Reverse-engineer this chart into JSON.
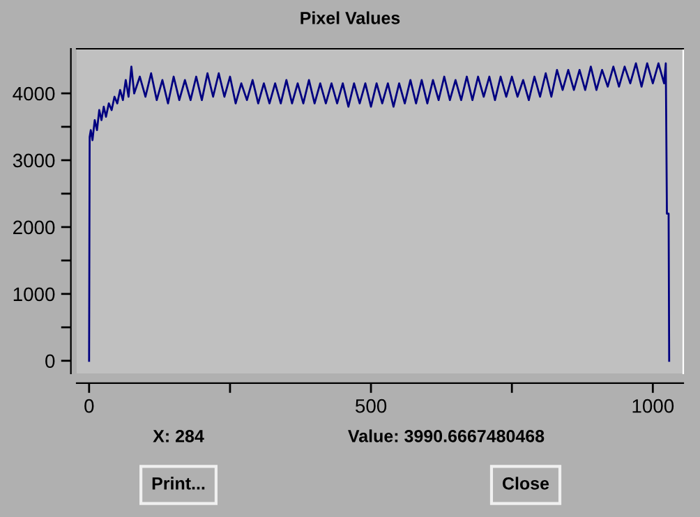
{
  "chart_data": {
    "type": "line",
    "title": "Pixel Values",
    "x": [
      0,
      1,
      3,
      6,
      10,
      14,
      18,
      22,
      26,
      30,
      35,
      40,
      45,
      50,
      55,
      60,
      65,
      70,
      75,
      80,
      90,
      100,
      110,
      120,
      130,
      140,
      150,
      160,
      170,
      180,
      190,
      200,
      210,
      220,
      230,
      240,
      250,
      260,
      270,
      280,
      290,
      300,
      310,
      320,
      330,
      340,
      350,
      360,
      370,
      380,
      390,
      400,
      410,
      420,
      430,
      440,
      450,
      460,
      470,
      480,
      490,
      500,
      510,
      520,
      530,
      540,
      550,
      560,
      570,
      580,
      590,
      600,
      610,
      620,
      630,
      640,
      650,
      660,
      670,
      680,
      690,
      700,
      710,
      720,
      730,
      740,
      750,
      760,
      770,
      780,
      790,
      800,
      810,
      820,
      830,
      840,
      850,
      860,
      870,
      880,
      890,
      900,
      910,
      920,
      930,
      940,
      950,
      960,
      970,
      980,
      990,
      1000,
      1010,
      1020,
      1023,
      1025,
      1028,
      1029
    ],
    "series": [
      {
        "color": "#000080",
        "values": [
          0,
          3350,
          3450,
          3300,
          3600,
          3450,
          3750,
          3600,
          3800,
          3650,
          3850,
          3750,
          3950,
          3850,
          4050,
          3900,
          4200,
          3950,
          4400,
          4000,
          4250,
          3950,
          4300,
          3900,
          4200,
          3850,
          4250,
          3900,
          4200,
          3900,
          4250,
          3900,
          4300,
          3950,
          4300,
          3950,
          4250,
          3850,
          4150,
          3900,
          4200,
          3850,
          4150,
          3850,
          4150,
          3850,
          4200,
          3850,
          4150,
          3850,
          4200,
          3850,
          4150,
          3850,
          4150,
          3850,
          4150,
          3800,
          4150,
          3850,
          4150,
          3800,
          4150,
          3850,
          4150,
          3800,
          4150,
          3850,
          4200,
          3850,
          4200,
          3850,
          4200,
          3900,
          4250,
          3900,
          4200,
          3900,
          4250,
          3900,
          4250,
          3950,
          4250,
          3900,
          4250,
          3950,
          4250,
          3950,
          4200,
          3900,
          4250,
          3950,
          4300,
          3950,
          4350,
          4050,
          4350,
          4050,
          4350,
          4050,
          4400,
          4050,
          4350,
          4100,
          4400,
          4100,
          4400,
          4150,
          4450,
          4100,
          4450,
          4150,
          4450,
          4150,
          4450,
          2200,
          2200,
          0
        ]
      }
    ],
    "xlim": [
      -22,
      1054
    ],
    "ylim": [
      -190,
      4667
    ],
    "xticks": [
      0,
      {
        "value": 250,
        "label": null
      },
      500,
      {
        "value": 750,
        "label": null
      },
      1000
    ],
    "yticks": [
      0,
      {
        "value": 500,
        "label": null
      },
      1000,
      {
        "value": 1500,
        "label": null
      },
      2000,
      {
        "value": 2500,
        "label": null
      },
      3000,
      {
        "value": 3500,
        "label": null
      },
      4000
    ],
    "grid": false,
    "annotations": [
      "X: 284",
      "Value: 3990.6667480468",
      "Print...",
      "Close"
    ]
  }
}
